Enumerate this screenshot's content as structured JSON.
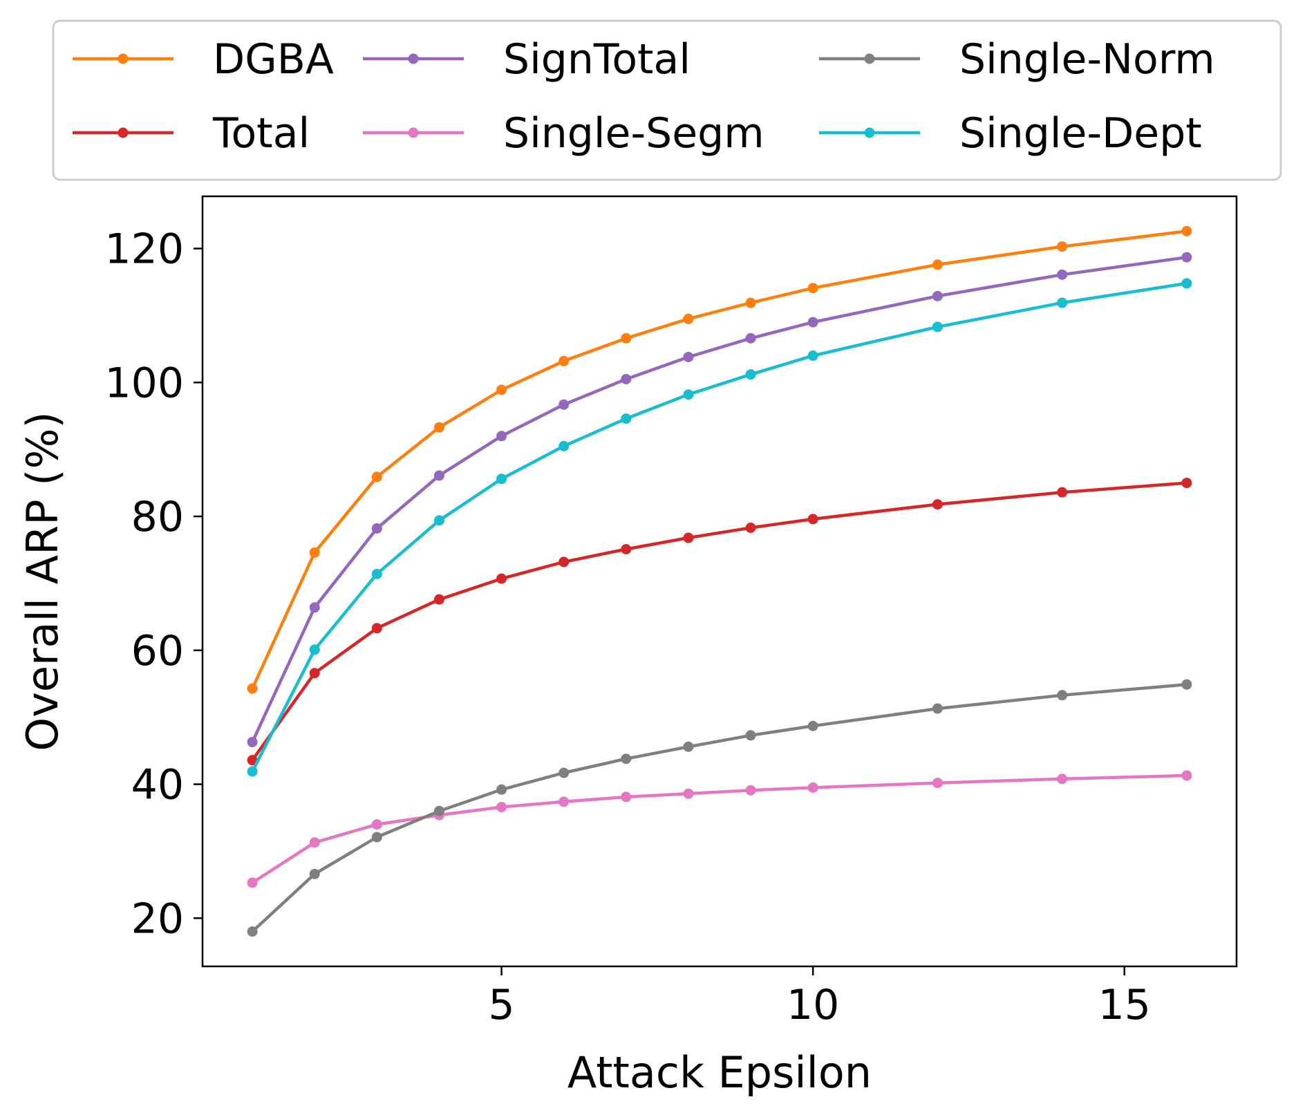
{
  "chart_data": {
    "type": "line",
    "title": "",
    "xlabel": "Attack Epsilon",
    "ylabel": "Overall ARP (%)",
    "xlim": [
      0.2,
      16.8
    ],
    "ylim": [
      12.8,
      127.8
    ],
    "xticks": [
      5,
      10,
      15
    ],
    "yticks": [
      20,
      40,
      60,
      80,
      100,
      120
    ],
    "grid": false,
    "legend_position": "top",
    "x": [
      1,
      2,
      3,
      4,
      5,
      6,
      7,
      8,
      9,
      10,
      12,
      14,
      16
    ],
    "series": [
      {
        "name": "DGBA",
        "color": "#ff7f0e",
        "values": [
          54.3,
          74.6,
          85.9,
          93.3,
          98.9,
          103.2,
          106.6,
          109.5,
          111.9,
          114.1,
          117.6,
          120.3,
          122.6
        ]
      },
      {
        "name": "Total",
        "color": "#d62728",
        "values": [
          43.6,
          56.6,
          63.3,
          67.6,
          70.7,
          73.2,
          75.1,
          76.8,
          78.3,
          79.6,
          81.8,
          83.6,
          85.0
        ]
      },
      {
        "name": "SignTotal",
        "color": "#9467bd",
        "values": [
          46.3,
          66.4,
          78.2,
          86.1,
          92.0,
          96.7,
          100.5,
          103.8,
          106.6,
          109.0,
          112.9,
          116.1,
          118.7
        ]
      },
      {
        "name": "Single-Segm",
        "color": "#e377c2",
        "values": [
          25.3,
          31.3,
          34.0,
          35.4,
          36.6,
          37.4,
          38.1,
          38.6,
          39.1,
          39.5,
          40.2,
          40.8,
          41.3
        ]
      },
      {
        "name": "Single-Norm",
        "color": "#7f7f7f",
        "values": [
          18.0,
          26.6,
          32.1,
          36.0,
          39.2,
          41.7,
          43.8,
          45.6,
          47.3,
          48.7,
          51.3,
          53.3,
          54.9
        ]
      },
      {
        "name": "Single-Dept",
        "color": "#17becf",
        "values": [
          41.9,
          60.1,
          71.4,
          79.4,
          85.6,
          90.5,
          94.6,
          98.2,
          101.2,
          104.0,
          108.3,
          111.9,
          114.8
        ]
      }
    ]
  }
}
